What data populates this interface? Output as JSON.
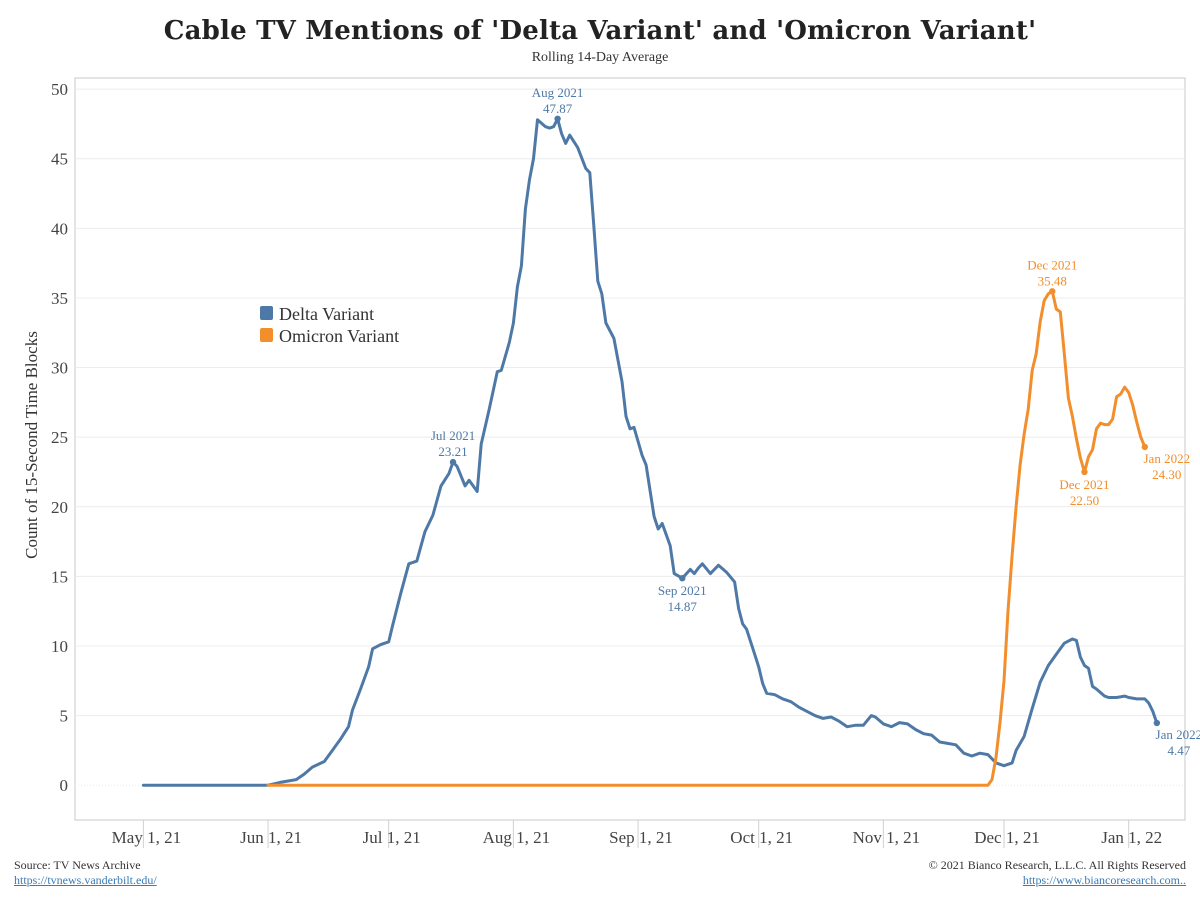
{
  "title": "Cable TV Mentions of 'Delta Variant' and 'Omicron Variant'",
  "subtitle": "Rolling 14-Day Average",
  "footer": {
    "source_label": "Source: TV News Archive",
    "source_url": "https://tvnews.vanderbilt.edu/",
    "copyright": "© 2021 Bianco Research, L.L.C. All Rights Reserved",
    "site_url": "https://www.biancoresearch.com.."
  },
  "colors": {
    "delta": "#4e79a7",
    "omicron": "#f28e2b"
  },
  "chart_data": {
    "type": "line",
    "title": "Cable TV Mentions of 'Delta Variant' and 'Omicron Variant'",
    "subtitle": "Rolling 14-Day Average",
    "xlabel": "",
    "ylabel": "Count of 15-Second Time Blocks",
    "xlim": [
      "2021-04-14",
      "2022-01-15"
    ],
    "ylim": [
      -2.5,
      50.8
    ],
    "yticks": [
      0,
      5,
      10,
      15,
      20,
      25,
      30,
      35,
      40,
      45,
      50
    ],
    "xticks": [
      {
        "date": "2021-05-01",
        "label": "May 1, 21"
      },
      {
        "date": "2021-06-01",
        "label": "Jun 1, 21"
      },
      {
        "date": "2021-07-01",
        "label": "Jul 1, 21"
      },
      {
        "date": "2021-08-01",
        "label": "Aug 1, 21"
      },
      {
        "date": "2021-09-01",
        "label": "Sep 1, 21"
      },
      {
        "date": "2021-10-01",
        "label": "Oct 1, 21"
      },
      {
        "date": "2021-11-01",
        "label": "Nov 1, 21"
      },
      {
        "date": "2021-12-01",
        "label": "Dec 1, 21"
      },
      {
        "date": "2022-01-01",
        "label": "Jan 1, 22"
      }
    ],
    "grid": "horizontal",
    "legend_position": "upper-left",
    "series": [
      {
        "name": "Delta Variant",
        "color": "#4e79a7",
        "points": [
          [
            "2021-05-01",
            0
          ],
          [
            "2021-05-20",
            0
          ],
          [
            "2021-06-01",
            0
          ],
          [
            "2021-06-04",
            0.2
          ],
          [
            "2021-06-08",
            0.4
          ],
          [
            "2021-06-10",
            0.8
          ],
          [
            "2021-06-12",
            1.3
          ],
          [
            "2021-06-15",
            1.7
          ],
          [
            "2021-06-17",
            2.5
          ],
          [
            "2021-06-19",
            3.3
          ],
          [
            "2021-06-21",
            4.2
          ],
          [
            "2021-06-22",
            5.4
          ],
          [
            "2021-06-24",
            6.9
          ],
          [
            "2021-06-26",
            8.5
          ],
          [
            "2021-06-27",
            9.8
          ],
          [
            "2021-06-29",
            10.1
          ],
          [
            "2021-07-01",
            10.3
          ],
          [
            "2021-07-02",
            11.5
          ],
          [
            "2021-07-04",
            13.8
          ],
          [
            "2021-07-06",
            15.9
          ],
          [
            "2021-07-08",
            16.1
          ],
          [
            "2021-07-10",
            18.2
          ],
          [
            "2021-07-12",
            19.4
          ],
          [
            "2021-07-14",
            21.5
          ],
          [
            "2021-07-16",
            22.4
          ],
          [
            "2021-07-17",
            23.21
          ],
          [
            "2021-07-18",
            22.9
          ],
          [
            "2021-07-20",
            21.5
          ],
          [
            "2021-07-21",
            21.9
          ],
          [
            "2021-07-23",
            21.1
          ],
          [
            "2021-07-24",
            24.5
          ],
          [
            "2021-07-26",
            27.0
          ],
          [
            "2021-07-28",
            29.7
          ],
          [
            "2021-07-29",
            29.8
          ],
          [
            "2021-07-31",
            31.8
          ],
          [
            "2021-08-01",
            33.2
          ],
          [
            "2021-08-02",
            35.8
          ],
          [
            "2021-08-03",
            37.3
          ],
          [
            "2021-08-04",
            41.4
          ],
          [
            "2021-08-05",
            43.5
          ],
          [
            "2021-08-06",
            45.0
          ],
          [
            "2021-08-07",
            47.8
          ],
          [
            "2021-08-09",
            47.3
          ],
          [
            "2021-08-10",
            47.2
          ],
          [
            "2021-08-11",
            47.3
          ],
          [
            "2021-08-12",
            47.87
          ],
          [
            "2021-08-13",
            46.8
          ],
          [
            "2021-08-14",
            46.1
          ],
          [
            "2021-08-15",
            46.7
          ],
          [
            "2021-08-17",
            45.8
          ],
          [
            "2021-08-19",
            44.3
          ],
          [
            "2021-08-20",
            44.0
          ],
          [
            "2021-08-21",
            40.2
          ],
          [
            "2021-08-22",
            36.2
          ],
          [
            "2021-08-23",
            35.3
          ],
          [
            "2021-08-24",
            33.2
          ],
          [
            "2021-08-26",
            32.1
          ],
          [
            "2021-08-28",
            29.0
          ],
          [
            "2021-08-29",
            26.5
          ],
          [
            "2021-08-30",
            25.6
          ],
          [
            "2021-08-31",
            25.7
          ],
          [
            "2021-09-02",
            23.7
          ],
          [
            "2021-09-03",
            23.0
          ],
          [
            "2021-09-05",
            19.3
          ],
          [
            "2021-09-06",
            18.4
          ],
          [
            "2021-09-07",
            18.8
          ],
          [
            "2021-09-09",
            17.2
          ],
          [
            "2021-09-10",
            15.2
          ],
          [
            "2021-09-12",
            14.87
          ],
          [
            "2021-09-14",
            15.5
          ],
          [
            "2021-09-15",
            15.2
          ],
          [
            "2021-09-16",
            15.6
          ],
          [
            "2021-09-17",
            15.9
          ],
          [
            "2021-09-19",
            15.2
          ],
          [
            "2021-09-21",
            15.8
          ],
          [
            "2021-09-23",
            15.3
          ],
          [
            "2021-09-25",
            14.6
          ],
          [
            "2021-09-26",
            12.7
          ],
          [
            "2021-09-27",
            11.6
          ],
          [
            "2021-09-28",
            11.2
          ],
          [
            "2021-09-30",
            9.4
          ],
          [
            "2021-10-01",
            8.5
          ],
          [
            "2021-10-02",
            7.3
          ],
          [
            "2021-10-03",
            6.6
          ],
          [
            "2021-10-05",
            6.5
          ],
          [
            "2021-10-07",
            6.2
          ],
          [
            "2021-10-09",
            6.0
          ],
          [
            "2021-10-11",
            5.6
          ],
          [
            "2021-10-13",
            5.3
          ],
          [
            "2021-10-15",
            5.0
          ],
          [
            "2021-10-17",
            4.8
          ],
          [
            "2021-10-19",
            4.9
          ],
          [
            "2021-10-21",
            4.6
          ],
          [
            "2021-10-23",
            4.2
          ],
          [
            "2021-10-25",
            4.3
          ],
          [
            "2021-10-27",
            4.3
          ],
          [
            "2021-10-29",
            5.0
          ],
          [
            "2021-10-30",
            4.9
          ],
          [
            "2021-11-01",
            4.4
          ],
          [
            "2021-11-03",
            4.2
          ],
          [
            "2021-11-05",
            4.5
          ],
          [
            "2021-11-07",
            4.4
          ],
          [
            "2021-11-09",
            4.0
          ],
          [
            "2021-11-11",
            3.7
          ],
          [
            "2021-11-13",
            3.6
          ],
          [
            "2021-11-15",
            3.1
          ],
          [
            "2021-11-17",
            3.0
          ],
          [
            "2021-11-19",
            2.9
          ],
          [
            "2021-11-21",
            2.3
          ],
          [
            "2021-11-23",
            2.1
          ],
          [
            "2021-11-25",
            2.3
          ],
          [
            "2021-11-27",
            2.2
          ],
          [
            "2021-11-29",
            1.6
          ],
          [
            "2021-12-01",
            1.4
          ],
          [
            "2021-12-03",
            1.6
          ],
          [
            "2021-12-04",
            2.5
          ],
          [
            "2021-12-06",
            3.5
          ],
          [
            "2021-12-08",
            5.5
          ],
          [
            "2021-12-10",
            7.4
          ],
          [
            "2021-12-12",
            8.6
          ],
          [
            "2021-12-14",
            9.4
          ],
          [
            "2021-12-16",
            10.2
          ],
          [
            "2021-12-18",
            10.5
          ],
          [
            "2021-12-19",
            10.4
          ],
          [
            "2021-12-20",
            9.2
          ],
          [
            "2021-12-21",
            8.6
          ],
          [
            "2021-12-22",
            8.4
          ],
          [
            "2021-12-23",
            7.1
          ],
          [
            "2021-12-24",
            6.9
          ],
          [
            "2021-12-26",
            6.4
          ],
          [
            "2021-12-27",
            6.3
          ],
          [
            "2021-12-29",
            6.3
          ],
          [
            "2021-12-31",
            6.4
          ],
          [
            "2022-01-01",
            6.3
          ],
          [
            "2022-01-03",
            6.2
          ],
          [
            "2022-01-05",
            6.2
          ],
          [
            "2022-01-06",
            5.9
          ],
          [
            "2022-01-07",
            5.3
          ],
          [
            "2022-01-08",
            4.47
          ]
        ]
      },
      {
        "name": "Omicron Variant",
        "color": "#f28e2b",
        "points": [
          [
            "2021-06-01",
            0
          ],
          [
            "2021-07-01",
            0
          ],
          [
            "2021-09-01",
            0
          ],
          [
            "2021-11-01",
            0
          ],
          [
            "2021-11-27",
            0
          ],
          [
            "2021-11-28",
            0.4
          ],
          [
            "2021-11-29",
            2.0
          ],
          [
            "2021-11-30",
            4.5
          ],
          [
            "2021-12-01",
            7.5
          ],
          [
            "2021-12-02",
            12.5
          ],
          [
            "2021-12-03",
            16.5
          ],
          [
            "2021-12-04",
            20.0
          ],
          [
            "2021-12-05",
            23.0
          ],
          [
            "2021-12-06",
            25.2
          ],
          [
            "2021-12-07",
            27.0
          ],
          [
            "2021-12-08",
            29.8
          ],
          [
            "2021-12-09",
            31.0
          ],
          [
            "2021-12-10",
            33.3
          ],
          [
            "2021-12-11",
            34.8
          ],
          [
            "2021-12-12",
            35.3
          ],
          [
            "2021-12-13",
            35.48
          ],
          [
            "2021-12-14",
            34.2
          ],
          [
            "2021-12-15",
            34.0
          ],
          [
            "2021-12-16",
            31.0
          ],
          [
            "2021-12-17",
            27.8
          ],
          [
            "2021-12-18",
            26.5
          ],
          [
            "2021-12-19",
            24.9
          ],
          [
            "2021-12-20",
            23.5
          ],
          [
            "2021-12-21",
            22.5
          ],
          [
            "2021-12-22",
            23.6
          ],
          [
            "2021-12-23",
            24.1
          ],
          [
            "2021-12-24",
            25.6
          ],
          [
            "2021-12-25",
            26.0
          ],
          [
            "2021-12-26",
            25.9
          ],
          [
            "2021-12-27",
            25.9
          ],
          [
            "2021-12-28",
            26.3
          ],
          [
            "2021-12-29",
            27.9
          ],
          [
            "2021-12-30",
            28.1
          ],
          [
            "2021-12-31",
            28.6
          ],
          [
            "2022-01-01",
            28.2
          ],
          [
            "2022-01-02",
            27.3
          ],
          [
            "2022-01-03",
            26.1
          ],
          [
            "2022-01-04",
            25.0
          ],
          [
            "2022-01-05",
            24.3
          ]
        ]
      }
    ],
    "annotations": [
      {
        "series": "Delta Variant",
        "date": "2021-07-17",
        "value": 23.21,
        "line1": "Jul 2021",
        "line2": "23.21",
        "position": "above"
      },
      {
        "series": "Delta Variant",
        "date": "2021-08-12",
        "value": 47.87,
        "line1": "Aug 2021",
        "line2": "47.87",
        "position": "above"
      },
      {
        "series": "Delta Variant",
        "date": "2021-09-12",
        "value": 14.87,
        "line1": "Sep 2021",
        "line2": "14.87",
        "position": "below"
      },
      {
        "series": "Delta Variant",
        "date": "2022-01-08",
        "value": 4.47,
        "line1": "Jan 2022",
        "line2": "4.47",
        "position": "below-right"
      },
      {
        "series": "Omicron Variant",
        "date": "2021-12-13",
        "value": 35.48,
        "line1": "Dec 2021",
        "line2": "35.48",
        "position": "above"
      },
      {
        "series": "Omicron Variant",
        "date": "2021-12-21",
        "value": 22.5,
        "line1": "Dec 2021",
        "line2": "22.50",
        "position": "below"
      },
      {
        "series": "Omicron Variant",
        "date": "2022-01-05",
        "value": 24.3,
        "line1": "Jan 2022",
        "line2": "24.30",
        "position": "below-right"
      }
    ]
  }
}
